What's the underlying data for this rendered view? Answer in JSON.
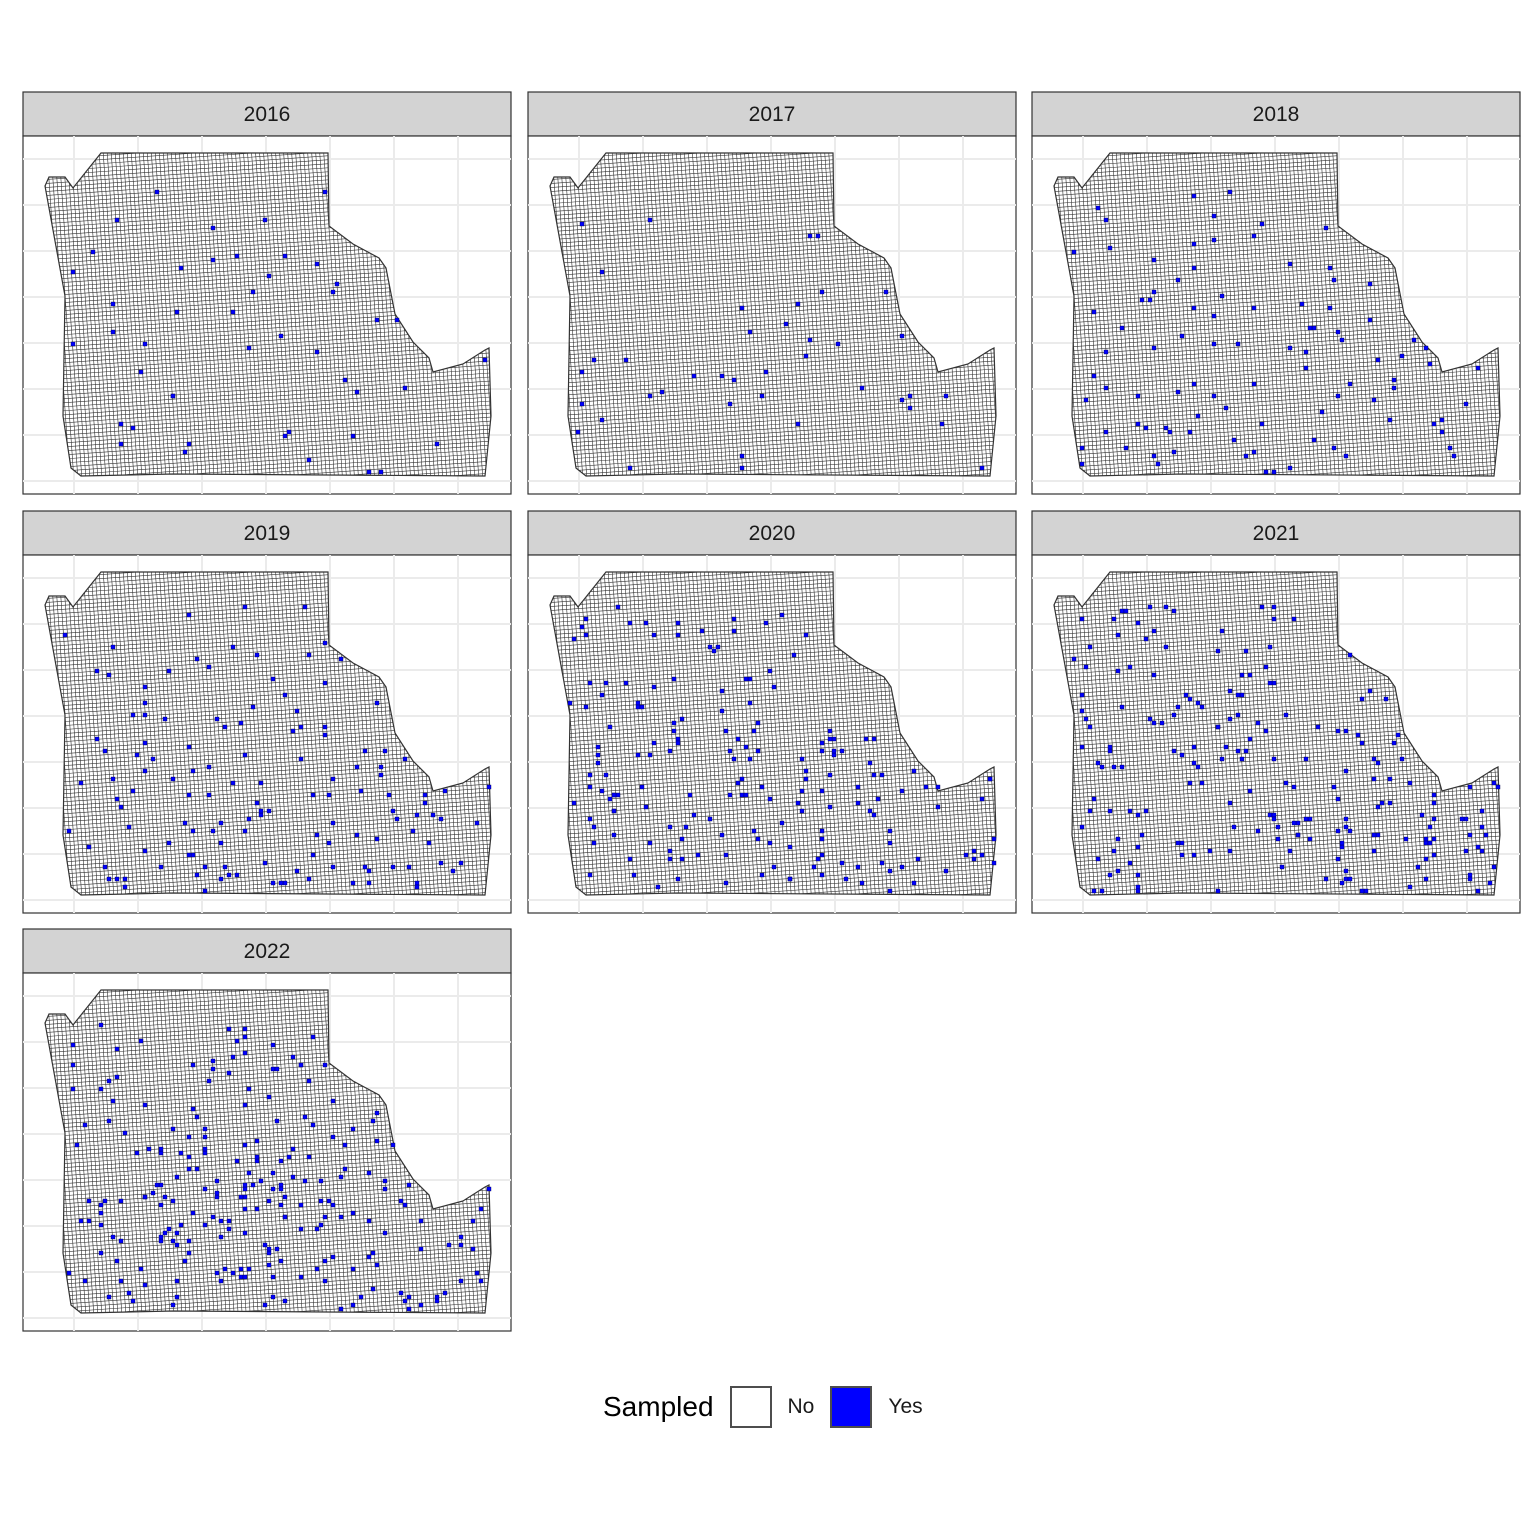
{
  "chart_data": {
    "type": "map",
    "facet_variable": "year",
    "facets": [
      {
        "label": "2016",
        "sampled_count": 46
      },
      {
        "label": "2017",
        "sampled_count": 40
      },
      {
        "label": "2018",
        "sampled_count": 94
      },
      {
        "label": "2019",
        "sampled_count": 132
      },
      {
        "label": "2020",
        "sampled_count": 172
      },
      {
        "label": "2021",
        "sampled_count": 196
      },
      {
        "label": "2022",
        "sampled_count": 222
      }
    ],
    "legend": {
      "title": "Sampled",
      "position": "bottom",
      "entries": [
        {
          "label": "No",
          "color": "#ffffff"
        },
        {
          "label": "Yes",
          "color": "#0000ff"
        }
      ]
    },
    "grid": true,
    "colors": {
      "sampled_yes": "#0000ff",
      "sampled_no": "#ffffff",
      "cell_border": "#333333",
      "strip_background": "#d3d3d3",
      "panel_border": "#333333",
      "gridline": "#ebebeb"
    }
  }
}
